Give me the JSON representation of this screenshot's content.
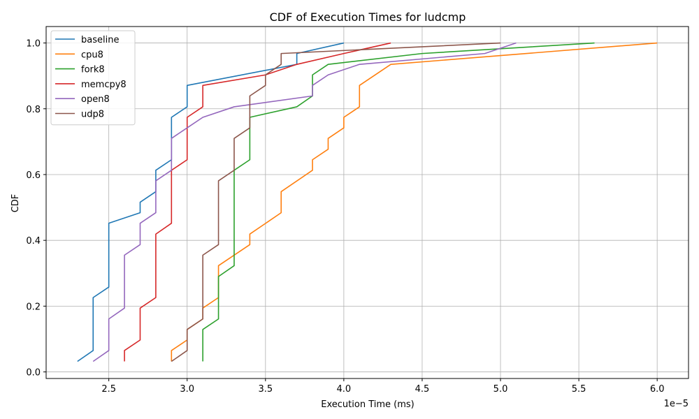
{
  "chart_data": {
    "type": "line",
    "title": "CDF of Execution Times for ludcmp",
    "xlabel": "Execution Time (ms)",
    "ylabel": "CDF",
    "x_scale_label": "1e−5",
    "xlim": [
      2.1,
      6.2
    ],
    "ylim": [
      -0.02,
      1.05
    ],
    "xticks": [
      2.5,
      3.0,
      3.5,
      4.0,
      4.5,
      5.0,
      5.5,
      6.0
    ],
    "xtick_labels": [
      "2.5",
      "3.0",
      "3.5",
      "4.0",
      "4.5",
      "5.0",
      "5.5",
      "6.0"
    ],
    "yticks": [
      0.0,
      0.2,
      0.4,
      0.6,
      0.8,
      1.0
    ],
    "ytick_labels": [
      "0.0",
      "0.2",
      "0.4",
      "0.6",
      "0.8",
      "1.0"
    ],
    "grid": true,
    "legend_position": "top-left",
    "series": [
      {
        "name": "baseline",
        "color": "#1f77b4",
        "points": [
          [
            2.3,
            0.032
          ],
          [
            2.4,
            0.065
          ],
          [
            2.4,
            0.226
          ],
          [
            2.5,
            0.258
          ],
          [
            2.5,
            0.452
          ],
          [
            2.7,
            0.484
          ],
          [
            2.7,
            0.516
          ],
          [
            2.8,
            0.548
          ],
          [
            2.8,
            0.613
          ],
          [
            2.9,
            0.645
          ],
          [
            2.9,
            0.774
          ],
          [
            3.0,
            0.806
          ],
          [
            3.0,
            0.871
          ],
          [
            3.7,
            0.935
          ],
          [
            3.7,
            0.968
          ],
          [
            4.0,
            1.0
          ]
        ]
      },
      {
        "name": "cpu8",
        "color": "#ff7f0e",
        "points": [
          [
            2.9,
            0.032
          ],
          [
            2.9,
            0.065
          ],
          [
            3.0,
            0.097
          ],
          [
            3.0,
            0.129
          ],
          [
            3.1,
            0.161
          ],
          [
            3.1,
            0.194
          ],
          [
            3.2,
            0.226
          ],
          [
            3.2,
            0.323
          ],
          [
            3.4,
            0.387
          ],
          [
            3.4,
            0.419
          ],
          [
            3.6,
            0.484
          ],
          [
            3.6,
            0.548
          ],
          [
            3.8,
            0.613
          ],
          [
            3.8,
            0.645
          ],
          [
            3.9,
            0.677
          ],
          [
            3.9,
            0.71
          ],
          [
            4.0,
            0.742
          ],
          [
            4.0,
            0.774
          ],
          [
            4.1,
            0.806
          ],
          [
            4.1,
            0.871
          ],
          [
            4.3,
            0.935
          ],
          [
            6.0,
            1.0
          ]
        ]
      },
      {
        "name": "fork8",
        "color": "#2ca02c",
        "points": [
          [
            3.1,
            0.032
          ],
          [
            3.1,
            0.129
          ],
          [
            3.2,
            0.161
          ],
          [
            3.2,
            0.29
          ],
          [
            3.3,
            0.323
          ],
          [
            3.3,
            0.613
          ],
          [
            3.4,
            0.645
          ],
          [
            3.4,
            0.774
          ],
          [
            3.7,
            0.806
          ],
          [
            3.8,
            0.839
          ],
          [
            3.8,
            0.903
          ],
          [
            3.9,
            0.935
          ],
          [
            4.5,
            0.968
          ],
          [
            5.6,
            1.0
          ]
        ]
      },
      {
        "name": "memcpy8",
        "color": "#d62728",
        "points": [
          [
            2.6,
            0.032
          ],
          [
            2.6,
            0.065
          ],
          [
            2.7,
            0.097
          ],
          [
            2.7,
            0.194
          ],
          [
            2.8,
            0.226
          ],
          [
            2.8,
            0.419
          ],
          [
            2.9,
            0.452
          ],
          [
            2.9,
            0.613
          ],
          [
            3.0,
            0.645
          ],
          [
            3.0,
            0.774
          ],
          [
            3.1,
            0.806
          ],
          [
            3.1,
            0.871
          ],
          [
            3.5,
            0.903
          ],
          [
            3.7,
            0.935
          ],
          [
            4.0,
            0.968
          ],
          [
            4.3,
            1.0
          ]
        ]
      },
      {
        "name": "open8",
        "color": "#9467bd",
        "points": [
          [
            2.4,
            0.032
          ],
          [
            2.5,
            0.065
          ],
          [
            2.5,
            0.161
          ],
          [
            2.6,
            0.194
          ],
          [
            2.6,
            0.355
          ],
          [
            2.7,
            0.387
          ],
          [
            2.7,
            0.452
          ],
          [
            2.8,
            0.484
          ],
          [
            2.8,
            0.581
          ],
          [
            2.9,
            0.613
          ],
          [
            2.9,
            0.71
          ],
          [
            3.0,
            0.742
          ],
          [
            3.1,
            0.774
          ],
          [
            3.3,
            0.806
          ],
          [
            3.8,
            0.839
          ],
          [
            3.8,
            0.871
          ],
          [
            3.9,
            0.903
          ],
          [
            4.1,
            0.935
          ],
          [
            4.9,
            0.968
          ],
          [
            5.1,
            1.0
          ]
        ]
      },
      {
        "name": "udp8",
        "color": "#8c564b",
        "points": [
          [
            2.9,
            0.032
          ],
          [
            3.0,
            0.065
          ],
          [
            3.0,
            0.129
          ],
          [
            3.1,
            0.161
          ],
          [
            3.1,
            0.355
          ],
          [
            3.2,
            0.387
          ],
          [
            3.2,
            0.581
          ],
          [
            3.3,
            0.613
          ],
          [
            3.3,
            0.71
          ],
          [
            3.4,
            0.742
          ],
          [
            3.4,
            0.839
          ],
          [
            3.5,
            0.871
          ],
          [
            3.5,
            0.903
          ],
          [
            3.6,
            0.935
          ],
          [
            3.6,
            0.968
          ],
          [
            5.0,
            1.0
          ]
        ]
      }
    ]
  }
}
